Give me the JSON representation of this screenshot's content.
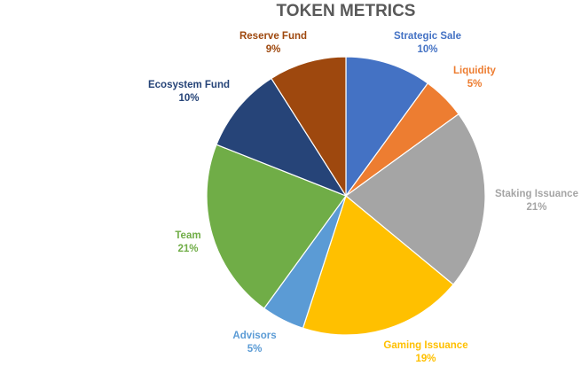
{
  "chart_data": {
    "type": "pie",
    "title": "TOKEN METRICS",
    "start_angle_deg": 0,
    "direction": "clockwise",
    "legend": "none",
    "slices": [
      {
        "name": "Strategic Sale",
        "value": 10,
        "label": "10%",
        "color": "#4472C4"
      },
      {
        "name": "Liquidity",
        "value": 5,
        "label": "5%",
        "color": "#ED7D31"
      },
      {
        "name": "Staking Issuance",
        "value": 21,
        "label": "21%",
        "color": "#A5A5A5"
      },
      {
        "name": "Gaming Issuance",
        "value": 19,
        "label": "19%",
        "color": "#FFC000"
      },
      {
        "name": "Advisors",
        "value": 5,
        "label": "5%",
        "color": "#5B9BD5"
      },
      {
        "name": "Team",
        "value": 21,
        "label": "21%",
        "color": "#70AD47"
      },
      {
        "name": "Ecosystem Fund",
        "value": 10,
        "label": "10%",
        "color": "#264478"
      },
      {
        "name": "Reserve Fund",
        "value": 9,
        "label": "9%",
        "color": "#9E480E"
      }
    ]
  }
}
